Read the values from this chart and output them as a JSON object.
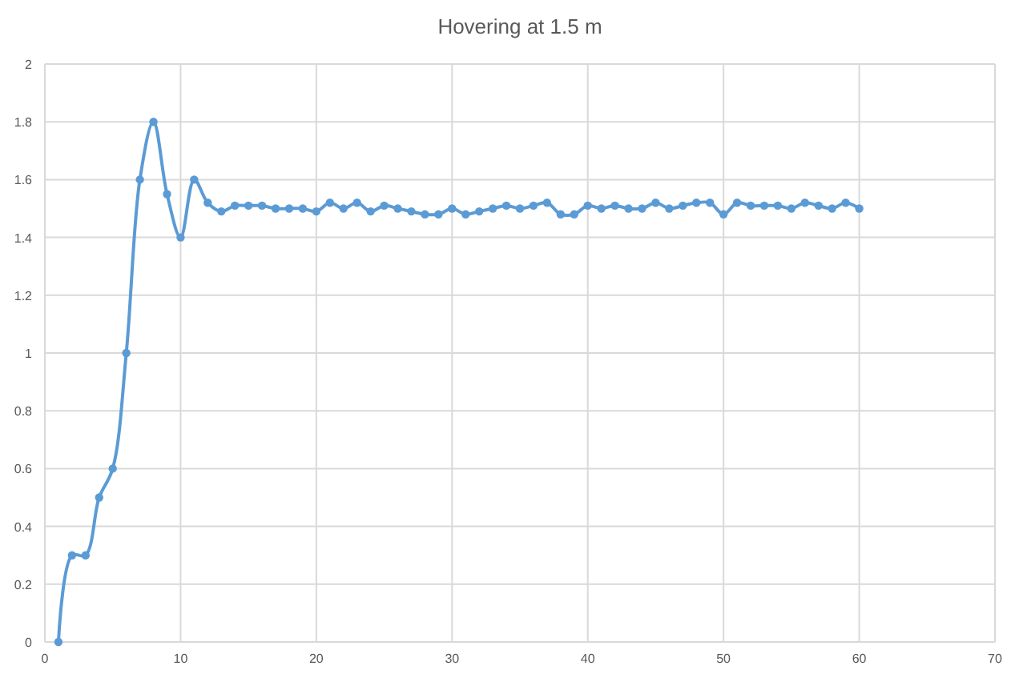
{
  "chart_data": {
    "type": "line",
    "title": "Hovering at 1.5 m",
    "x": [
      1,
      2,
      3,
      4,
      5,
      6,
      7,
      8,
      9,
      10,
      11,
      12,
      13,
      14,
      15,
      16,
      17,
      18,
      19,
      20,
      21,
      22,
      23,
      24,
      25,
      26,
      27,
      28,
      29,
      30,
      31,
      32,
      33,
      34,
      35,
      36,
      37,
      38,
      39,
      40,
      41,
      42,
      43,
      44,
      45,
      46,
      47,
      48,
      49,
      50,
      51,
      52,
      53,
      54,
      55,
      56,
      57,
      58,
      59,
      60
    ],
    "series": [
      {
        "color": "#5b9bd5",
        "values": [
          0,
          0.3,
          0.3,
          0.5,
          0.6,
          1,
          1.6,
          1.8,
          1.55,
          1.4,
          1.6,
          1.52,
          1.49,
          1.51,
          1.51,
          1.51,
          1.5,
          1.5,
          1.5,
          1.49,
          1.52,
          1.5,
          1.52,
          1.49,
          1.51,
          1.5,
          1.49,
          1.48,
          1.48,
          1.5,
          1.48,
          1.49,
          1.5,
          1.51,
          1.5,
          1.51,
          1.52,
          1.48,
          1.48,
          1.51,
          1.5,
          1.51,
          1.5,
          1.5,
          1.52,
          1.5,
          1.51,
          1.52,
          1.52,
          1.48,
          1.52,
          1.51,
          1.51,
          1.51,
          1.5,
          1.52,
          1.51,
          1.5,
          1.52,
          1.5
        ]
      }
    ],
    "xlim": [
      0,
      70
    ],
    "xticks": [
      0,
      10,
      20,
      30,
      40,
      50,
      60,
      70
    ],
    "ylim": [
      0,
      2
    ],
    "yticks": [
      0,
      0.2,
      0.4,
      0.6,
      0.8,
      1,
      1.2,
      1.4,
      1.6,
      1.8,
      2
    ],
    "grid": true,
    "marker": "circle",
    "line_style": "solid"
  }
}
